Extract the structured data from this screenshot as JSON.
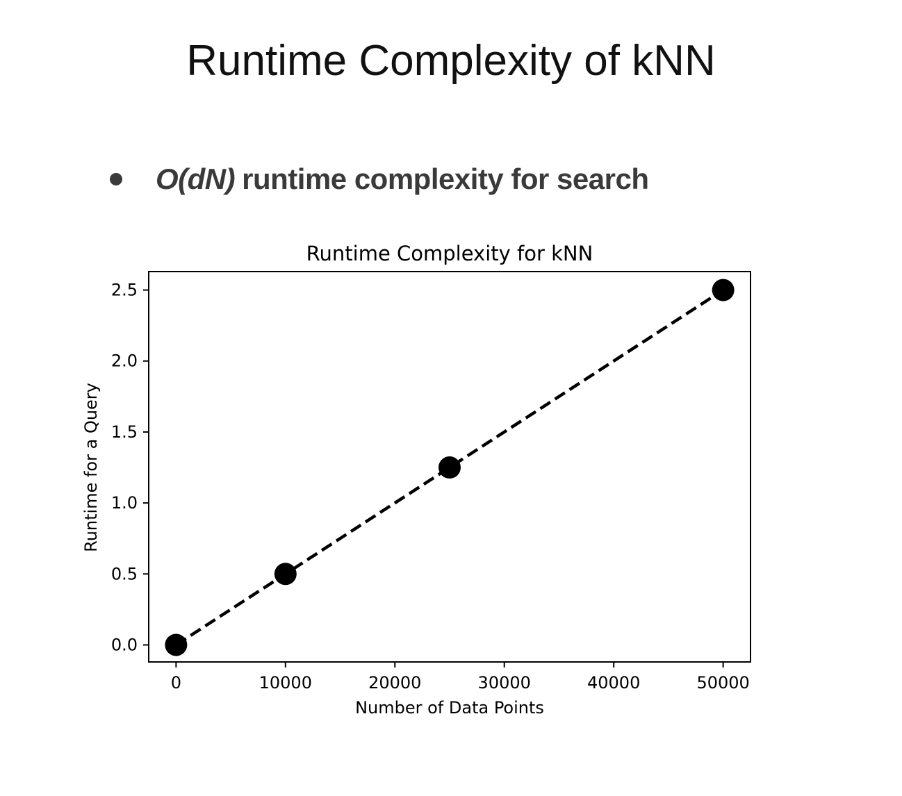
{
  "slide": {
    "title": "Runtime Complexity of kNN",
    "bullet": {
      "math": "O(dN)",
      "text": "runtime complexity for search"
    }
  },
  "colors": {
    "background": "#ffffff",
    "title": "#111111",
    "bullet_text": "#3a3a3a",
    "series": "#000000"
  },
  "chart_data": {
    "type": "line",
    "title": "Runtime Complexity for kNN",
    "xlabel": "Number of Data Points",
    "ylabel": "Runtime for a Query",
    "xlim": [
      -2500,
      52500
    ],
    "ylim": [
      -0.12,
      2.63
    ],
    "xticks": [
      0,
      10000,
      20000,
      30000,
      40000,
      50000
    ],
    "xtick_labels": [
      "0",
      "10000",
      "20000",
      "30000",
      "40000",
      "50000"
    ],
    "yticks": [
      0.0,
      0.5,
      1.0,
      1.5,
      2.0,
      2.5
    ],
    "ytick_labels": [
      "0.0",
      "0.5",
      "1.0",
      "1.5",
      "2.0",
      "2.5"
    ],
    "grid": false,
    "series": [
      {
        "x": [
          0,
          10000,
          25000,
          50000
        ],
        "y": [
          0.0,
          0.5,
          1.25,
          2.5
        ],
        "line_style": "dashed",
        "marker": "circle",
        "color": "#000000"
      }
    ]
  }
}
